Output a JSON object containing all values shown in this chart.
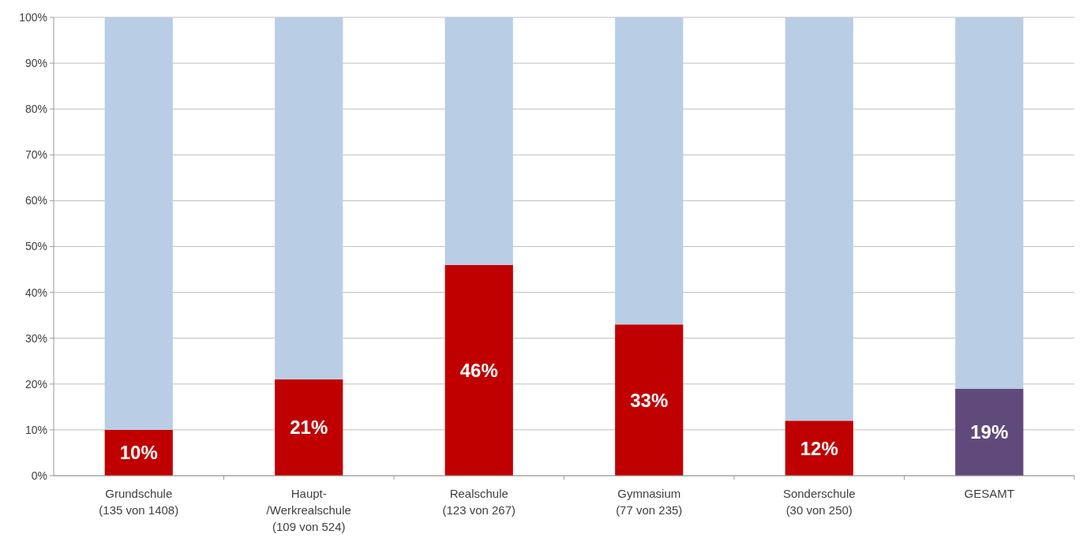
{
  "chart_data": {
    "type": "bar",
    "stacked": true,
    "categories": [
      "Grundschule\n(135 von 1408)",
      "Haupt-\n/Werkrealschule\n(109 von 524)",
      "Realschule\n(123 von 267)",
      "Gymnasium\n(77 von 235)",
      "Sonderschule\n(30 von 250)",
      "GESAMT"
    ],
    "series": [
      {
        "colors": [
          "#c00000",
          "#c00000",
          "#c00000",
          "#c00000",
          "#c00000",
          "#604a7b"
        ],
        "values": [
          10,
          21,
          46,
          33,
          12,
          19
        ],
        "value_labels": [
          "10%",
          "21%",
          "46%",
          "33%",
          "12%",
          "19%"
        ]
      },
      {
        "color": "#b9cde5",
        "values": [
          90,
          79,
          54,
          67,
          88,
          81
        ]
      }
    ],
    "ylim": [
      0,
      100
    ],
    "yticks": [
      {
        "value": 0,
        "label": "0%"
      },
      {
        "value": 10,
        "label": "10%"
      },
      {
        "value": 20,
        "label": "20%"
      },
      {
        "value": 30,
        "label": "30%"
      },
      {
        "value": 40,
        "label": "40%"
      },
      {
        "value": 50,
        "label": "50%"
      },
      {
        "value": 60,
        "label": "60%"
      },
      {
        "value": 70,
        "label": "70%"
      },
      {
        "value": 80,
        "label": "80%"
      },
      {
        "value": 90,
        "label": "90%"
      },
      {
        "value": 100,
        "label": "100%"
      }
    ],
    "grid": "y"
  }
}
